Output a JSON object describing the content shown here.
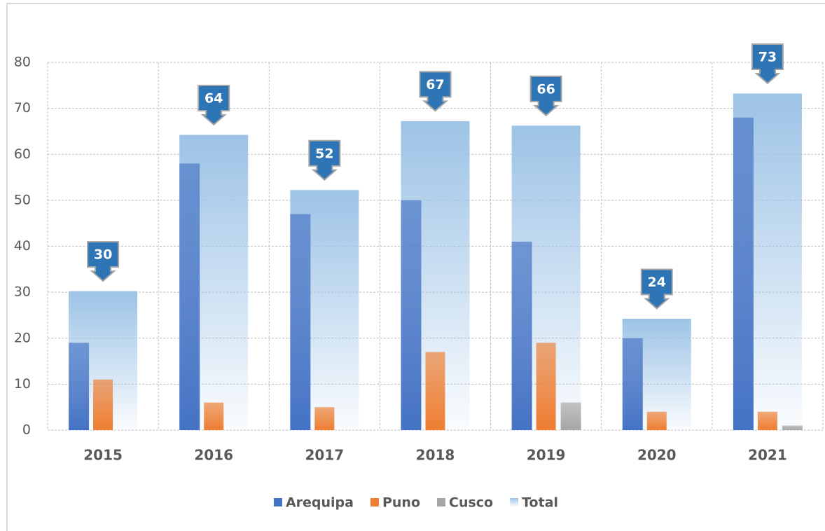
{
  "chart_data": {
    "type": "bar",
    "categories": [
      "2015",
      "2016",
      "2017",
      "2018",
      "2019",
      "2020",
      "2021"
    ],
    "series": [
      {
        "name": "Arequipa",
        "color": "#4472c4",
        "values": [
          19,
          58,
          47,
          50,
          41,
          20,
          68
        ]
      },
      {
        "name": "Puno",
        "color": "#ed7d31",
        "values": [
          11,
          6,
          5,
          17,
          19,
          4,
          4
        ]
      },
      {
        "name": "Cusco",
        "color": "#a5a5a5",
        "values": [
          0,
          0,
          0,
          0,
          6,
          0,
          1
        ]
      },
      {
        "name": "Total",
        "color": "#9dc3e6",
        "values": [
          30,
          64,
          52,
          67,
          66,
          24,
          73
        ]
      }
    ],
    "ylim": [
      0,
      80
    ],
    "yticks": [
      0,
      10,
      20,
      30,
      40,
      50,
      60,
      70,
      80
    ],
    "grid": true,
    "legend": "bottom"
  }
}
